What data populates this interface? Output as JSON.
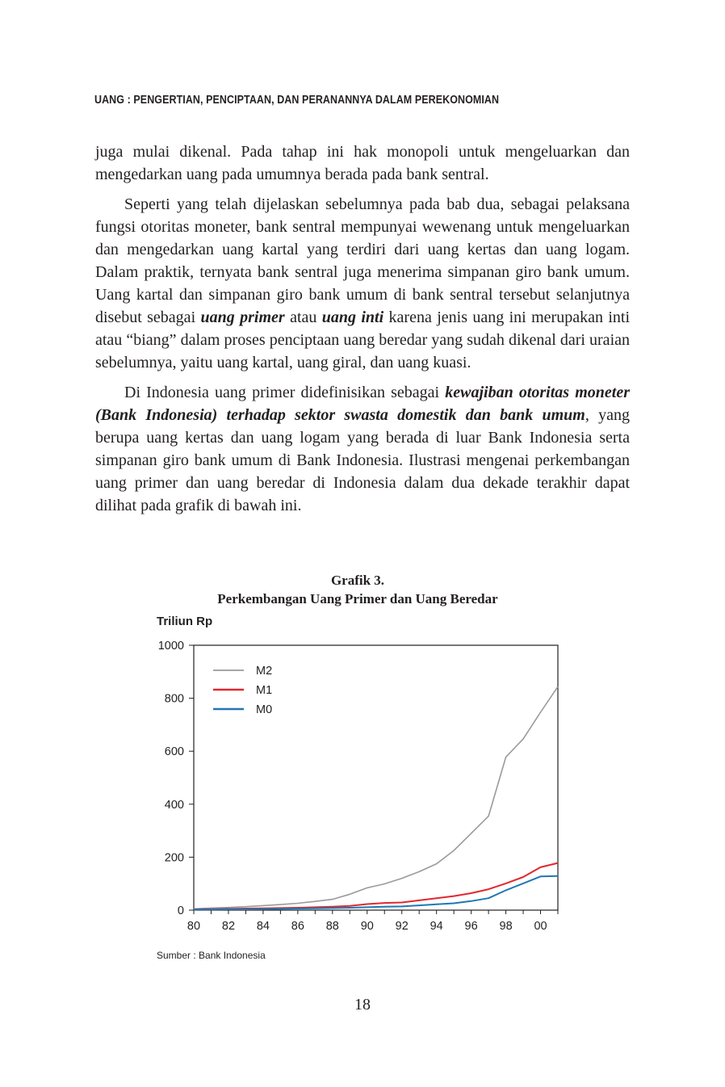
{
  "header": {
    "running_title": "UANG : PENGERTIAN, PENCIPTAAN, DAN PERANANNYA DALAM PEREKONOMIAN"
  },
  "body": {
    "p1": "juga mulai dikenal. Pada tahap ini hak monopoli untuk mengeluarkan dan mengedarkan uang pada umumnya berada pada bank sentral.",
    "p2_a": "Seperti yang telah dijelaskan sebelumnya pada bab dua, sebagai pelaksana fungsi otoritas moneter, bank sentral mempunyai wewenang untuk mengeluarkan dan mengedarkan uang kartal yang terdiri dari uang kertas dan uang logam. Dalam praktik, ternyata bank sentral juga menerima simpanan giro bank umum. Uang kartal dan simpanan giro bank umum di bank sentral tersebut selanjutnya disebut sebagai ",
    "p2_em1": "uang primer",
    "p2_b": " atau ",
    "p2_em2": "uang inti",
    "p2_c": " karena jenis uang ini merupakan inti atau “biang” dalam proses penciptaan uang beredar yang sudah dikenal dari uraian sebelumnya, yaitu uang kartal, uang giral, dan uang kuasi.",
    "p3_a": "Di Indonesia uang primer didefinisikan sebagai ",
    "p3_em": "kewajiban otoritas moneter (Bank Indonesia) terhadap sektor swasta domestik dan bank umum",
    "p3_b": ", yang berupa uang kertas dan uang logam yang berada di luar Bank Indonesia serta simpanan giro bank umum di Bank Indonesia. Ilustrasi mengenai perkembangan uang primer dan uang beredar di Indonesia dalam dua dekade terakhir dapat dilihat pada grafik di bawah ini."
  },
  "figure": {
    "label": "Grafik 3.",
    "title": "Perkembangan Uang Primer dan Uang Beredar",
    "source": "Sumber : Bank Indonesia"
  },
  "page_number": "18",
  "chart_data": {
    "type": "line",
    "ylabel": "Triliun Rp",
    "xlabel": "",
    "x": [
      80,
      81,
      82,
      83,
      84,
      85,
      86,
      87,
      88,
      89,
      90,
      91,
      92,
      93,
      94,
      95,
      96,
      97,
      98,
      99,
      100,
      101
    ],
    "x_tick_labels": [
      "80",
      "82",
      "84",
      "86",
      "88",
      "90",
      "92",
      "94",
      "96",
      "98",
      "00"
    ],
    "ylim": [
      0,
      1000
    ],
    "xlim": [
      80,
      101
    ],
    "y_ticks": [
      0,
      200,
      400,
      600,
      800,
      1000
    ],
    "grid": false,
    "legend": "top-left",
    "series": [
      {
        "name": "M2",
        "color": "#9a9a9a",
        "values": [
          5,
          8,
          10,
          13,
          17,
          21,
          26,
          33,
          41,
          60,
          84,
          99,
          120,
          145,
          175,
          225,
          290,
          355,
          578,
          646,
          747,
          844
        ]
      },
      {
        "name": "M1",
        "color": "#e0282e",
        "values": [
          3,
          4,
          5,
          6,
          7,
          8,
          9,
          11,
          13,
          16,
          23,
          27,
          29,
          37,
          45,
          53,
          64,
          79,
          101,
          125,
          162,
          178
        ]
      },
      {
        "name": "M0",
        "color": "#1f78b4",
        "values": [
          2,
          2,
          3,
          3,
          4,
          5,
          6,
          7,
          8,
          9,
          11,
          13,
          14,
          18,
          22,
          26,
          34,
          45,
          75,
          101,
          127,
          129
        ]
      }
    ]
  }
}
